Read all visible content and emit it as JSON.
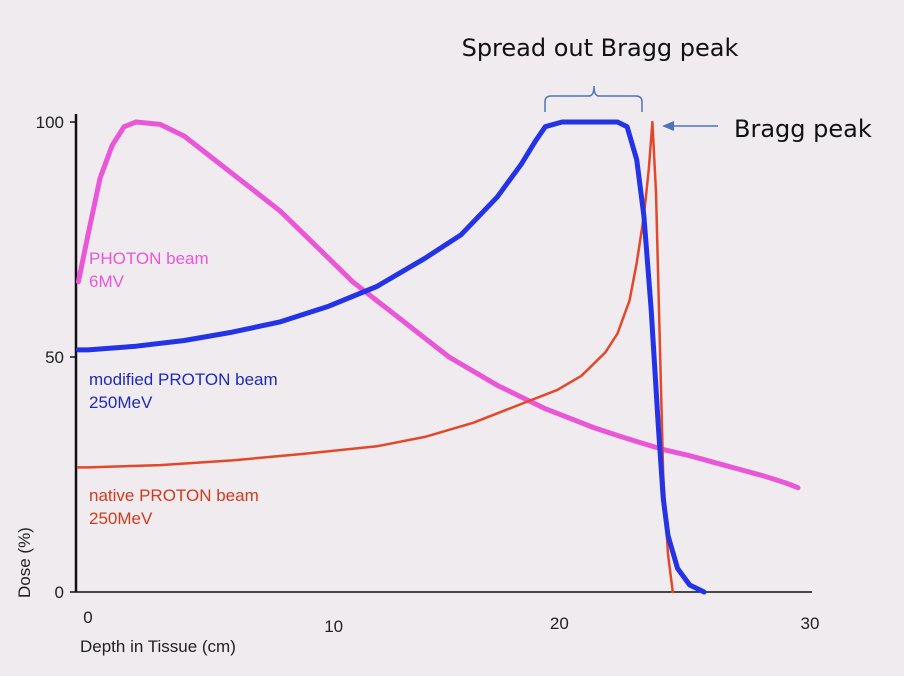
{
  "chart_data": {
    "type": "line",
    "title": "",
    "xlabel": "Depth in Tissue (cm)",
    "ylabel": "Dose (%)",
    "xlim": [
      0,
      30
    ],
    "ylim": [
      0,
      100
    ],
    "x_ticks": [
      "0",
      "10",
      "20",
      "30"
    ],
    "y_ticks": [
      "0",
      "50",
      "100"
    ],
    "grid": false,
    "series": [
      {
        "name": "PHOTON beam 6MV",
        "label_lines": [
          "PHOTON beam",
          "6MV"
        ],
        "color": "#e957d8",
        "points": [
          [
            -0.4,
            66
          ],
          [
            0,
            76
          ],
          [
            0.5,
            88
          ],
          [
            1,
            95
          ],
          [
            1.5,
            99
          ],
          [
            2,
            100
          ],
          [
            3,
            99.5
          ],
          [
            4,
            97
          ],
          [
            5,
            93
          ],
          [
            6,
            89
          ],
          [
            7,
            85
          ],
          [
            8,
            81
          ],
          [
            9,
            76
          ],
          [
            10,
            71
          ],
          [
            11,
            66
          ],
          [
            12,
            62
          ],
          [
            13,
            58
          ],
          [
            14,
            54
          ],
          [
            15,
            50
          ],
          [
            16,
            47
          ],
          [
            17,
            44
          ],
          [
            18,
            41.5
          ],
          [
            19,
            39
          ],
          [
            20,
            37
          ],
          [
            21,
            35
          ],
          [
            22,
            33.3
          ],
          [
            23,
            31.7
          ],
          [
            24,
            30.2
          ],
          [
            25,
            29
          ],
          [
            26,
            27.6
          ],
          [
            27,
            26.2
          ],
          [
            28,
            24.8
          ],
          [
            29,
            23.2
          ],
          [
            29.5,
            22.2
          ]
        ]
      },
      {
        "name": "modified PROTON beam 250MeV",
        "label_lines": [
          "modified PROTON beam",
          "250MeV"
        ],
        "color": "#2433e6",
        "points": [
          [
            -0.4,
            51.5
          ],
          [
            0,
            51.5
          ],
          [
            2,
            52.3
          ],
          [
            4,
            53.5
          ],
          [
            6,
            55.3
          ],
          [
            8,
            57.5
          ],
          [
            10,
            60.8
          ],
          [
            12,
            65
          ],
          [
            14,
            71
          ],
          [
            15.5,
            76
          ],
          [
            17,
            84
          ],
          [
            18,
            91
          ],
          [
            18.6,
            96
          ],
          [
            19,
            99
          ],
          [
            19.7,
            100
          ],
          [
            21,
            100
          ],
          [
            22,
            100
          ],
          [
            22.4,
            99
          ],
          [
            22.8,
            92
          ],
          [
            23.1,
            80
          ],
          [
            23.4,
            60
          ],
          [
            23.7,
            35
          ],
          [
            23.9,
            20
          ],
          [
            24.1,
            12
          ],
          [
            24.5,
            5
          ],
          [
            25,
            1.5
          ],
          [
            25.6,
            0
          ]
        ]
      },
      {
        "name": "native PROTON beam 250MeV",
        "label_lines": [
          "native PROTON beam",
          "250MeV"
        ],
        "color": "#e2482a",
        "points": [
          [
            -0.4,
            26.5
          ],
          [
            0,
            26.5
          ],
          [
            3,
            27
          ],
          [
            6,
            28
          ],
          [
            9,
            29.4
          ],
          [
            12,
            31
          ],
          [
            14,
            33
          ],
          [
            16,
            36
          ],
          [
            18,
            40
          ],
          [
            19.5,
            43
          ],
          [
            20.5,
            46
          ],
          [
            21.5,
            51
          ],
          [
            22,
            55
          ],
          [
            22.5,
            62
          ],
          [
            22.8,
            70
          ],
          [
            23.1,
            80
          ],
          [
            23.3,
            90
          ],
          [
            23.45,
            100
          ],
          [
            23.6,
            85
          ],
          [
            23.75,
            55
          ],
          [
            23.9,
            25
          ],
          [
            24.1,
            8
          ],
          [
            24.3,
            0
          ]
        ]
      }
    ],
    "annotations": [
      {
        "text": "Spread out Bragg peak",
        "target_x_range": [
          18.9,
          23.1
        ]
      },
      {
        "text": "Bragg peak",
        "target_x": 23.6,
        "target_y": 100
      }
    ]
  }
}
